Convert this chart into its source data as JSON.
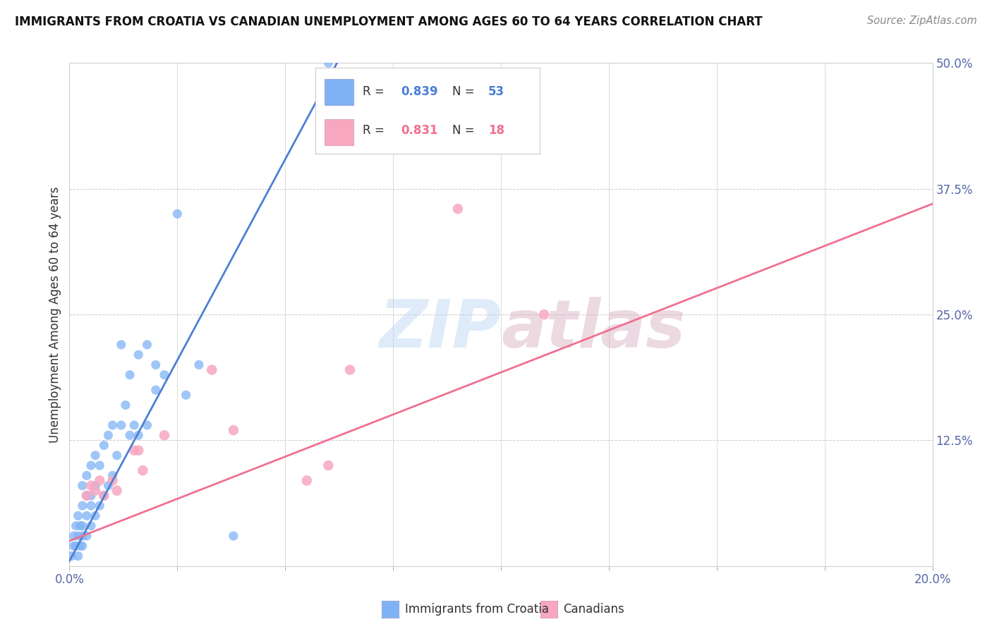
{
  "title": "IMMIGRANTS FROM CROATIA VS CANADIAN UNEMPLOYMENT AMONG AGES 60 TO 64 YEARS CORRELATION CHART",
  "source": "Source: ZipAtlas.com",
  "ylabel": "Unemployment Among Ages 60 to 64 years",
  "xlim": [
    0.0,
    0.2
  ],
  "ylim": [
    0.0,
    0.5
  ],
  "xtick_positions": [
    0.0,
    0.025,
    0.05,
    0.075,
    0.1,
    0.125,
    0.15,
    0.175,
    0.2
  ],
  "xticklabels": [
    "0.0%",
    "",
    "",
    "",
    "",
    "",
    "",
    "",
    "20.0%"
  ],
  "ytick_positions": [
    0.0,
    0.125,
    0.25,
    0.375,
    0.5
  ],
  "yticklabels_right": [
    "",
    "12.5%",
    "25.0%",
    "37.5%",
    "50.0%"
  ],
  "blue_scatter_x": [
    0.0005,
    0.001,
    0.001,
    0.0015,
    0.0015,
    0.002,
    0.002,
    0.002,
    0.0025,
    0.0025,
    0.003,
    0.003,
    0.003,
    0.003,
    0.003,
    0.004,
    0.004,
    0.004,
    0.004,
    0.005,
    0.005,
    0.005,
    0.005,
    0.006,
    0.006,
    0.006,
    0.007,
    0.007,
    0.008,
    0.008,
    0.009,
    0.009,
    0.01,
    0.01,
    0.011,
    0.012,
    0.013,
    0.014,
    0.015,
    0.016,
    0.018,
    0.02,
    0.022,
    0.025,
    0.027,
    0.03,
    0.012,
    0.014,
    0.016,
    0.018,
    0.02,
    0.038,
    0.06
  ],
  "blue_scatter_y": [
    0.01,
    0.02,
    0.03,
    0.02,
    0.04,
    0.01,
    0.03,
    0.05,
    0.02,
    0.04,
    0.02,
    0.03,
    0.04,
    0.06,
    0.08,
    0.03,
    0.05,
    0.07,
    0.09,
    0.04,
    0.06,
    0.07,
    0.1,
    0.05,
    0.08,
    0.11,
    0.06,
    0.1,
    0.07,
    0.12,
    0.08,
    0.13,
    0.09,
    0.14,
    0.11,
    0.14,
    0.16,
    0.13,
    0.14,
    0.13,
    0.14,
    0.2,
    0.19,
    0.35,
    0.17,
    0.2,
    0.22,
    0.19,
    0.21,
    0.22,
    0.175,
    0.03,
    0.5
  ],
  "blue_line_x": [
    0.0,
    0.062
  ],
  "blue_line_y": [
    0.005,
    0.5
  ],
  "pink_scatter_x": [
    0.004,
    0.005,
    0.006,
    0.007,
    0.008,
    0.01,
    0.011,
    0.015,
    0.016,
    0.017,
    0.022,
    0.033,
    0.038,
    0.055,
    0.06,
    0.065,
    0.09,
    0.11
  ],
  "pink_scatter_y": [
    0.07,
    0.08,
    0.075,
    0.085,
    0.07,
    0.085,
    0.075,
    0.115,
    0.115,
    0.095,
    0.13,
    0.195,
    0.135,
    0.085,
    0.1,
    0.195,
    0.355,
    0.25
  ],
  "pink_line_x": [
    0.0,
    0.2
  ],
  "pink_line_y": [
    0.025,
    0.36
  ],
  "blue_color": "#7fb3f5",
  "pink_color": "#f7a8c0",
  "blue_line_color": "#4d7fd4",
  "pink_line_color": "#f07090",
  "legend_r_blue": "0.839",
  "legend_n_blue": "53",
  "legend_r_pink": "0.831",
  "legend_n_pink": "18",
  "watermark_zip": "ZIP",
  "watermark_atlas": "atlas",
  "background_color": "#ffffff",
  "grid_color": "#cccccc"
}
